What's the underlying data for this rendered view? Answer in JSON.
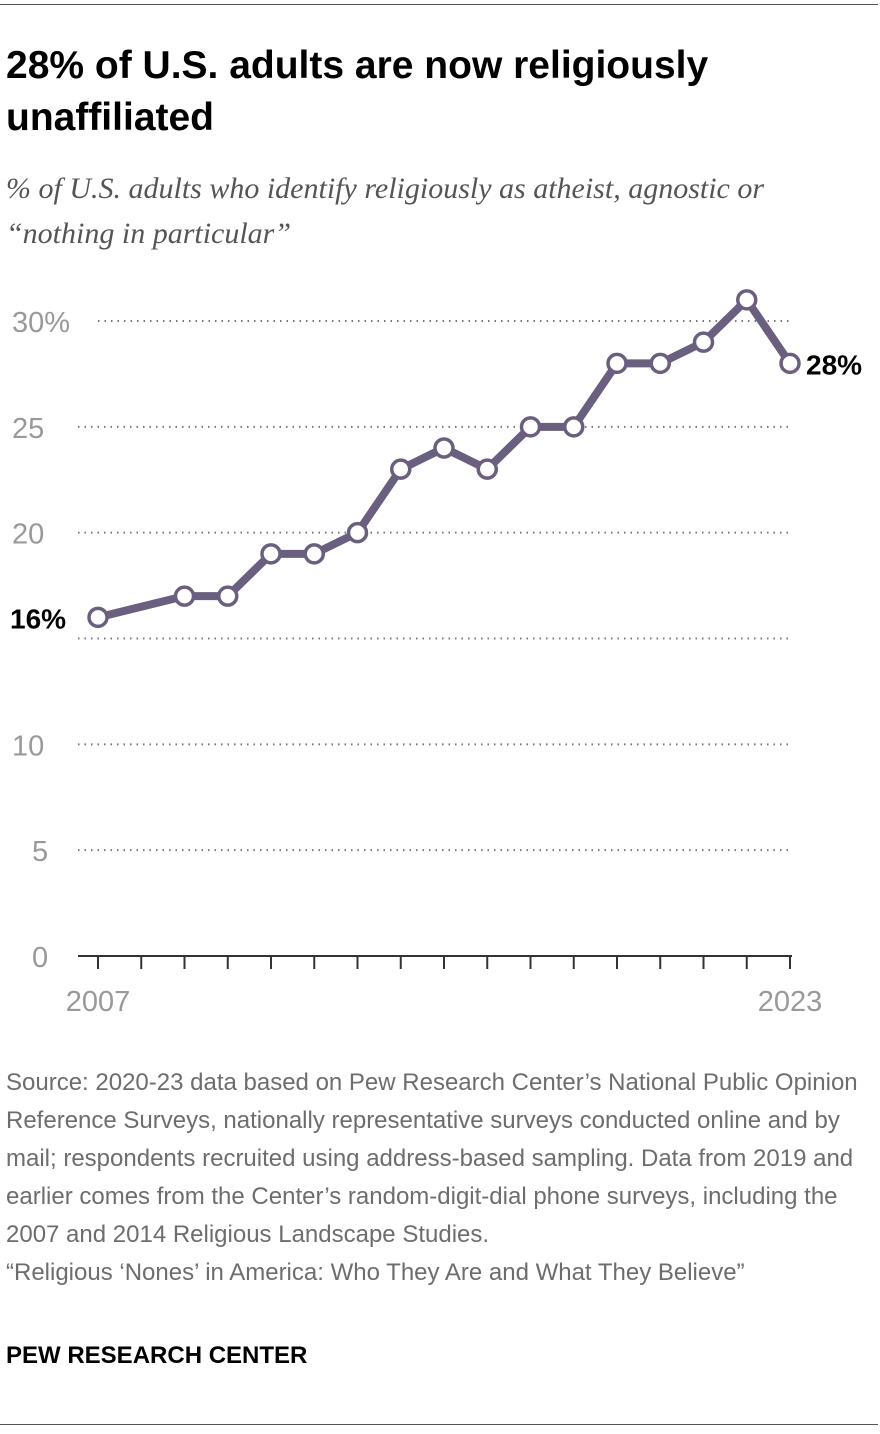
{
  "title": "28% of U.S. adults are now religiously unaffiliated",
  "subtitle": "% of U.S. adults who identify religiously as atheist, agnostic or “nothing in particular”",
  "chart_data": {
    "type": "line",
    "title": "28% of U.S. adults are now religiously unaffiliated",
    "subtitle": "% of U.S. adults who identify religiously as atheist, agnostic or “nothing in particular”",
    "x": [
      2007,
      2009,
      2010,
      2011,
      2012,
      2013,
      2014,
      2015,
      2016,
      2017,
      2018,
      2019,
      2020,
      2021,
      2022,
      2023
    ],
    "values": [
      16,
      17,
      17,
      19,
      19,
      20,
      23,
      24,
      23,
      25,
      25,
      28,
      28,
      29,
      31,
      28
    ],
    "xlim": [
      2007,
      2023
    ],
    "ylim": [
      0,
      30
    ],
    "yticks": [
      0,
      5,
      10,
      15,
      20,
      25,
      30
    ],
    "ytick_labels": [
      "0",
      "5",
      "10",
      "",
      "20",
      "25",
      "30%"
    ],
    "xtick_labels": [
      "2007",
      "2023"
    ],
    "data_labels": {
      "first": "16%",
      "last": "28%"
    },
    "grid": "dotted horizontal",
    "line_color": "#6b5f80"
  },
  "notes": {
    "source": "Source: 2020-23 data based on Pew Research Center’s National Public Opinion Reference Surveys, nationally representative surveys conducted online and by mail; respondents recruited using address-based sampling. Data from 2019 and earlier comes from the Center’s random-digit-dial phone surveys, including the 2007 and 2014 Religious Landscape Studies.",
    "report": "“Religious ‘Nones’ in America: Who They Are and What They Believe”"
  },
  "brand": "PEW RESEARCH CENTER"
}
